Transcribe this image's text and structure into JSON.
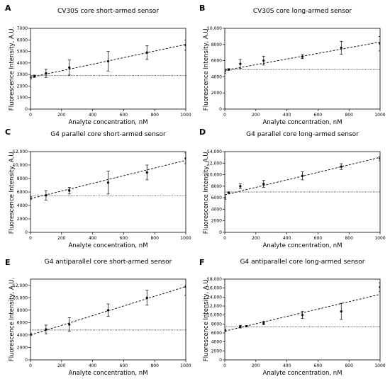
{
  "chart_data": [
    {
      "type": "scatter",
      "letter": "A",
      "title": "CV30S core short-armed sensor",
      "xlabel": "Analyte concentration, nM",
      "ylabel": "Fluorescence Intensity, A.U.",
      "xlim": [
        0,
        1000
      ],
      "ylim": [
        0,
        7000
      ],
      "xticks": [
        0,
        200,
        400,
        600,
        800,
        1000
      ],
      "xtick_labels": [
        "0",
        "200",
        "400",
        "600",
        "800",
        "1000"
      ],
      "yticks": [
        0,
        1000,
        2000,
        3000,
        4000,
        5000,
        6000,
        7000
      ],
      "ytick_labels": [
        "0",
        "1000",
        "2000",
        "3000",
        "4000",
        "5000",
        "6000",
        "7000"
      ],
      "points": [
        {
          "x": 0,
          "y": 2750,
          "err": 150
        },
        {
          "x": 25,
          "y": 2850,
          "err": 100
        },
        {
          "x": 100,
          "y": 3100,
          "err": 350
        },
        {
          "x": 250,
          "y": 3600,
          "err": 650
        },
        {
          "x": 500,
          "y": 4150,
          "err": 850
        },
        {
          "x": 750,
          "y": 4900,
          "err": 600
        },
        {
          "x": 1000,
          "y": 5550,
          "err": 450
        }
      ],
      "fit": {
        "x": [
          0,
          1000
        ],
        "y": [
          2750,
          5600
        ]
      },
      "baseline": 2900
    },
    {
      "type": "scatter",
      "letter": "B",
      "title": "CV30S core long-armed sensor",
      "xlabel": "Analyte concentration, nM",
      "ylabel": "Fluorescence Intensity, A.U.",
      "xlim": [
        0,
        1000
      ],
      "ylim": [
        0,
        10000
      ],
      "xticks": [
        0,
        200,
        400,
        600,
        800,
        1000
      ],
      "xtick_labels": [
        "0",
        "200",
        "400",
        "600",
        "800",
        "1000"
      ],
      "yticks": [
        0,
        2000,
        4000,
        6000,
        8000,
        10000
      ],
      "ytick_labels": [
        "0",
        "2000",
        "4000",
        "6000",
        "8000",
        "10,000"
      ],
      "points": [
        {
          "x": 0,
          "y": 4700,
          "err": 250
        },
        {
          "x": 25,
          "y": 4900,
          "err": 100
        },
        {
          "x": 100,
          "y": 5600,
          "err": 550
        },
        {
          "x": 250,
          "y": 6000,
          "err": 550
        },
        {
          "x": 500,
          "y": 6500,
          "err": 250
        },
        {
          "x": 750,
          "y": 7600,
          "err": 800
        },
        {
          "x": 1000,
          "y": 8100,
          "err": 900
        }
      ],
      "fit": {
        "x": [
          0,
          1000
        ],
        "y": [
          4800,
          8300
        ]
      },
      "baseline": 4900
    },
    {
      "type": "scatter",
      "letter": "C",
      "title": "G4 parallel core short-armed sensor",
      "xlabel": "Analyte concentration, nM",
      "ylabel": "Fluorescence Intensity, A.U.",
      "xlim": [
        0,
        1000
      ],
      "ylim": [
        0,
        12000
      ],
      "xticks": [
        0,
        200,
        400,
        600,
        800,
        1000
      ],
      "xtick_labels": [
        "0",
        "200",
        "400",
        "600",
        "800",
        "1000"
      ],
      "yticks": [
        0,
        2000,
        4000,
        6000,
        8000,
        10000,
        12000
      ],
      "ytick_labels": [
        "0",
        "2000",
        "4000",
        "6000",
        "8000",
        "10,000",
        "12,000"
      ],
      "points": [
        {
          "x": 0,
          "y": 5100,
          "err": 200
        },
        {
          "x": 100,
          "y": 5500,
          "err": 700
        },
        {
          "x": 250,
          "y": 6200,
          "err": 500
        },
        {
          "x": 500,
          "y": 7400,
          "err": 1700
        },
        {
          "x": 750,
          "y": 8900,
          "err": 1100
        },
        {
          "x": 1000,
          "y": 11000,
          "err": 800
        }
      ],
      "fit": {
        "x": [
          0,
          1000
        ],
        "y": [
          5000,
          10700
        ]
      },
      "baseline": 5400
    },
    {
      "type": "scatter",
      "letter": "D",
      "title": "G4 parallel core long-armed sensor",
      "xlabel": "Analyte concentration, nM",
      "ylabel": "Fluorescence Intensity, A.U.",
      "xlim": [
        0,
        1000
      ],
      "ylim": [
        0,
        14000
      ],
      "xticks": [
        0,
        200,
        400,
        600,
        800,
        1000
      ],
      "xtick_labels": [
        "0",
        "200",
        "400",
        "600",
        "800",
        "1000"
      ],
      "yticks": [
        0,
        2000,
        4000,
        6000,
        8000,
        10000,
        12000,
        14000
      ],
      "ytick_labels": [
        "0",
        "2000",
        "4000",
        "6000",
        "8000",
        "10,000",
        "12,000",
        "14,000"
      ],
      "points": [
        {
          "x": 0,
          "y": 6000,
          "err": 300
        },
        {
          "x": 25,
          "y": 6900,
          "err": 100
        },
        {
          "x": 100,
          "y": 8000,
          "err": 400
        },
        {
          "x": 250,
          "y": 8400,
          "err": 600
        },
        {
          "x": 500,
          "y": 9800,
          "err": 700
        },
        {
          "x": 750,
          "y": 11400,
          "err": 500
        },
        {
          "x": 1000,
          "y": 12800,
          "err": 400
        }
      ],
      "fit": {
        "x": [
          0,
          1000
        ],
        "y": [
          6500,
          13000
        ]
      },
      "baseline": 7000
    },
    {
      "type": "scatter",
      "letter": "E",
      "title": "G4 antiparallel core short-armed sensor",
      "xlabel": "Analyte concentration, nM",
      "ylabel": "Fluorescence Intensity, A.U.",
      "xlim": [
        0,
        1000
      ],
      "ylim": [
        0,
        13000
      ],
      "xticks": [
        0,
        200,
        400,
        600,
        800,
        1000
      ],
      "xtick_labels": [
        "0",
        "200",
        "400",
        "600",
        "800",
        "1000"
      ],
      "yticks": [
        0,
        2000,
        4000,
        6000,
        8000,
        10000,
        12000
      ],
      "ytick_labels": [
        "0",
        "2000",
        "4000",
        "6000",
        "8000",
        "10,000",
        "12,000"
      ],
      "points": [
        {
          "x": 0,
          "y": 4100,
          "err": 200
        },
        {
          "x": 100,
          "y": 4900,
          "err": 700
        },
        {
          "x": 250,
          "y": 5700,
          "err": 1100
        },
        {
          "x": 500,
          "y": 8000,
          "err": 1000
        },
        {
          "x": 750,
          "y": 10000,
          "err": 1200
        },
        {
          "x": 1000,
          "y": 11800,
          "err": 1400
        }
      ],
      "fit": {
        "x": [
          0,
          1000
        ],
        "y": [
          4000,
          11800
        ]
      },
      "baseline": 4800
    },
    {
      "type": "scatter",
      "letter": "F",
      "title": "G4 antiparallel core long-armed sensor",
      "xlabel": "Analyte concentration, nM",
      "ylabel": "Fluorescence Intensity, A.U.",
      "xlim": [
        0,
        1000
      ],
      "ylim": [
        0,
        18000
      ],
      "xticks": [
        0,
        200,
        400,
        600,
        800,
        1000
      ],
      "xtick_labels": [
        "0",
        "200",
        "400",
        "600",
        "800",
        "1000"
      ],
      "yticks": [
        0,
        2000,
        4000,
        6000,
        8000,
        10000,
        12000,
        14000,
        16000,
        18000
      ],
      "ytick_labels": [
        "0",
        "2000",
        "4000",
        "6000",
        "8000",
        "10,000",
        "12,000",
        "14,000",
        "16,000",
        "18,000"
      ],
      "points": [
        {
          "x": 0,
          "y": 6600,
          "err": 300
        },
        {
          "x": 100,
          "y": 7400,
          "err": 300
        },
        {
          "x": 140,
          "y": 7500,
          "err": 150
        },
        {
          "x": 250,
          "y": 8200,
          "err": 400
        },
        {
          "x": 500,
          "y": 10000,
          "err": 800
        },
        {
          "x": 750,
          "y": 10800,
          "err": 1800
        },
        {
          "x": 1000,
          "y": 16200,
          "err": 1000
        }
      ],
      "fit": {
        "x": [
          0,
          1000
        ],
        "y": [
          6400,
          14600
        ]
      },
      "baseline": 7400
    }
  ]
}
